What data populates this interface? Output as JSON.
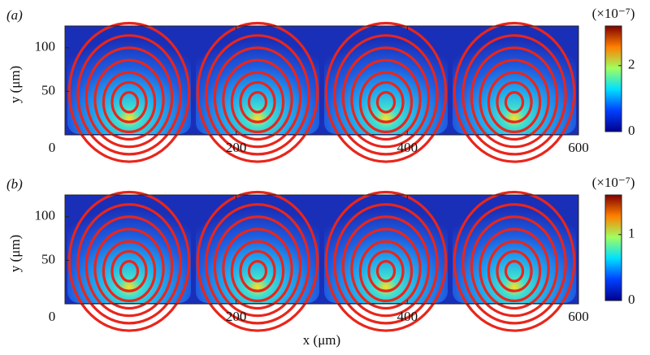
{
  "chart_data": [
    {
      "type": "heatmap",
      "panel_label": "(a)",
      "ylabel": "y (μm)",
      "xlim": [
        0,
        600
      ],
      "xticks": [
        0,
        200,
        400,
        600
      ],
      "ylim": [
        0,
        125
      ],
      "yticks": [
        50,
        100
      ],
      "colorbar": {
        "label": "(×10⁻⁷)",
        "lim": [
          0,
          3.2
        ],
        "ticks": [
          0,
          2
        ]
      }
    },
    {
      "type": "heatmap",
      "panel_label": "(b)",
      "ylabel": "y (μm)",
      "xlabel": "x (μm)",
      "xlim": [
        0,
        600
      ],
      "xticks": [
        0,
        200,
        400,
        600
      ],
      "ylim": [
        0,
        125
      ],
      "yticks": [
        50,
        100
      ],
      "colorbar": {
        "label": "(×10⁻⁷)",
        "lim": [
          0,
          1.6
        ],
        "ticks": [
          0,
          1
        ]
      }
    }
  ]
}
